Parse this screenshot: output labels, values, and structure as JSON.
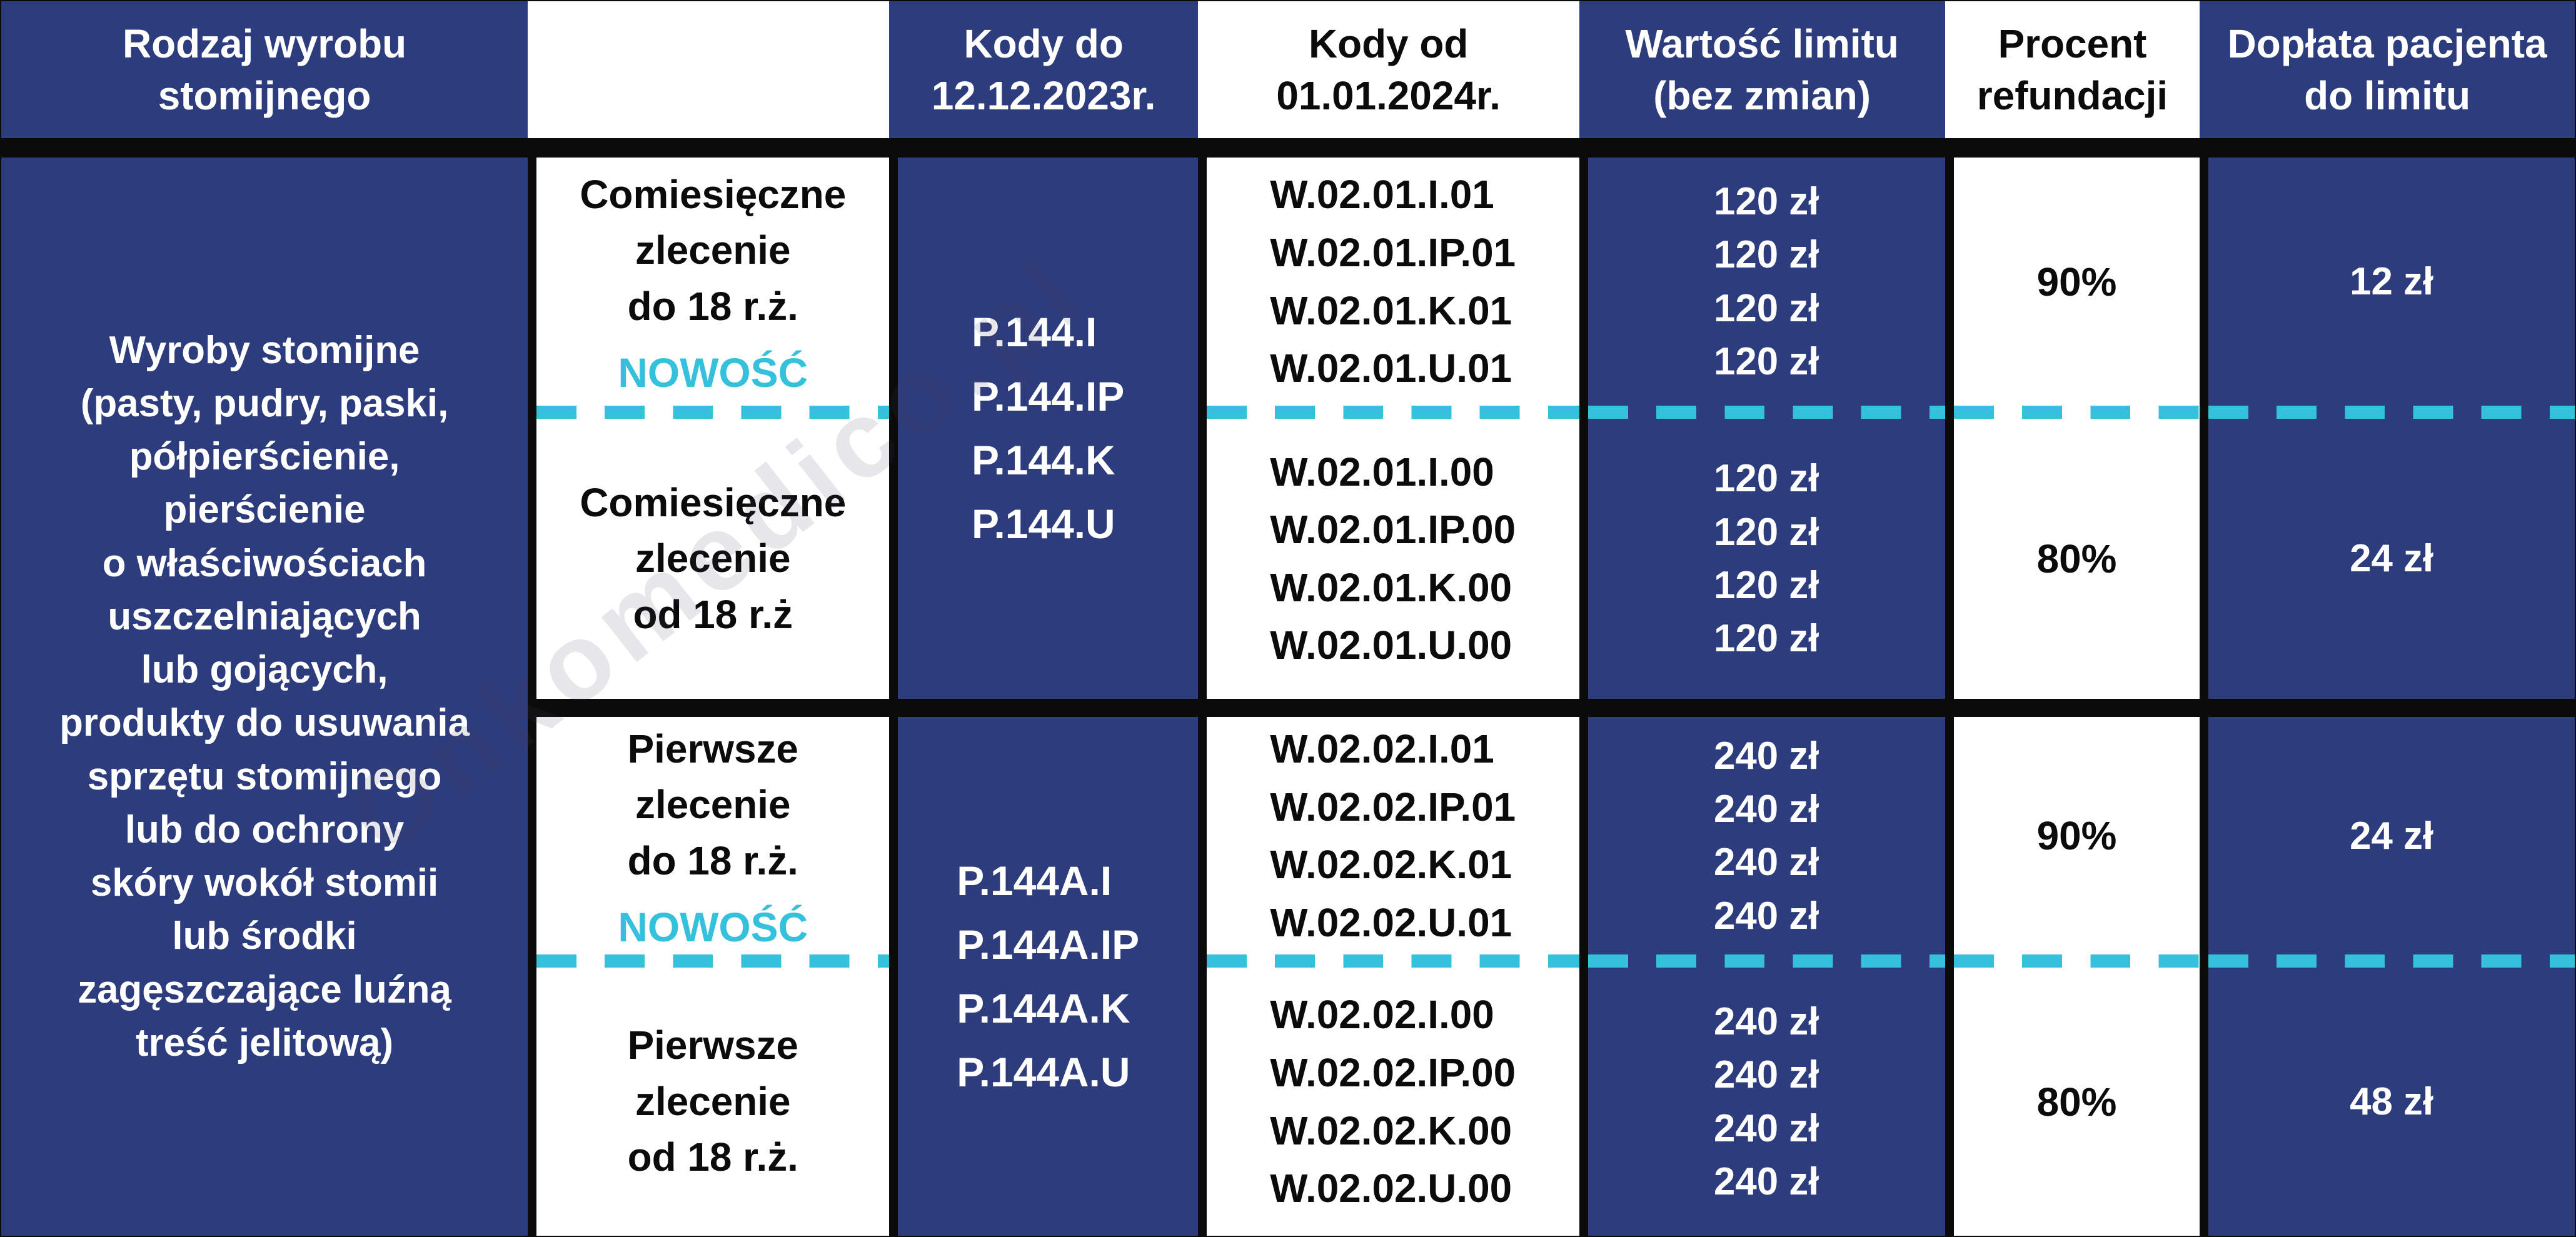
{
  "colors": {
    "navy": "#2d3c7d",
    "cyan": "#35c1dc",
    "grid_line": "#0b0b0b"
  },
  "header": {
    "columns": [
      {
        "label": "Rodzaj wyrobu\nstomijnego",
        "variant": "blue"
      },
      {
        "label": "",
        "variant": "white"
      },
      {
        "label": "Kody do\n12.12.2023r.",
        "variant": "blue"
      },
      {
        "label": "Kody od\n01.01.2024r.",
        "variant": "white"
      },
      {
        "label": "Wartość limitu\n(bez zmian)",
        "variant": "blue"
      },
      {
        "label": "Procent\nrefundacji",
        "variant": "white"
      },
      {
        "label": "Dopłata pacjenta\ndo limitu",
        "variant": "blue"
      }
    ]
  },
  "product": {
    "description": "Wyroby stomijne\n(pasty, pudry, paski,\npółpierścienie,\npierścienie\no właściwościach\nuszczelniających\nlub gojących,\nprodukty do usuwania\nsprzętu stomijnego\nlub do ochrony\nskóry wokół stomii\nlub środki\nzagęszczające luźną\ntreść jelitową)"
  },
  "halves": [
    {
      "old_codes": "P.144.I\nP.144.IP\nP.144.K\nP.144.U",
      "rows": [
        {
          "order_type": "Comiesięczne\nzlecenie\ndo 18 r.ż.",
          "badge": "NOWOŚĆ",
          "new_codes": "W.02.01.I.01\nW.02.01.IP.01\nW.02.01.K.01\nW.02.01.U.01",
          "limit_values": "120 zł\n120 zł\n120 zł\n120 zł",
          "refund_percent": "90%",
          "patient_payment": "12 zł"
        },
        {
          "order_type": "Comiesięczne\nzlecenie\nod 18 r.ż",
          "badge": "",
          "new_codes": "W.02.01.I.00\nW.02.01.IP.00\nW.02.01.K.00\nW.02.01.U.00",
          "limit_values": "120 zł\n120 zł\n120 zł\n120 zł",
          "refund_percent": "80%",
          "patient_payment": "24 zł"
        }
      ]
    },
    {
      "old_codes": "P.144A.I\nP.144A.IP\nP.144A.K\nP.144A.U",
      "rows": [
        {
          "order_type": "Pierwsze\nzlecenie\ndo 18 r.ż.",
          "badge": "NOWOŚĆ",
          "new_codes": "W.02.02.I.01\nW.02.02.IP.01\nW.02.02.K.01\nW.02.02.U.01",
          "limit_values": "240 zł\n240 zł\n240 zł\n240 zł",
          "refund_percent": "90%",
          "patient_payment": "24 zł"
        },
        {
          "order_type": "Pierwsze\nzlecenie\nod 18 r.ż.",
          "badge": "",
          "new_codes": "W.02.02.I.00\nW.02.02.IP.00\nW.02.02.K.00\nW.02.02.U.00",
          "limit_values": "240 zł\n240 zł\n240 zł\n240 zł",
          "refund_percent": "80%",
          "patient_payment": "48 zł"
        }
      ]
    }
  ],
  "watermark": {
    "text": "Onkomedico.pl"
  }
}
